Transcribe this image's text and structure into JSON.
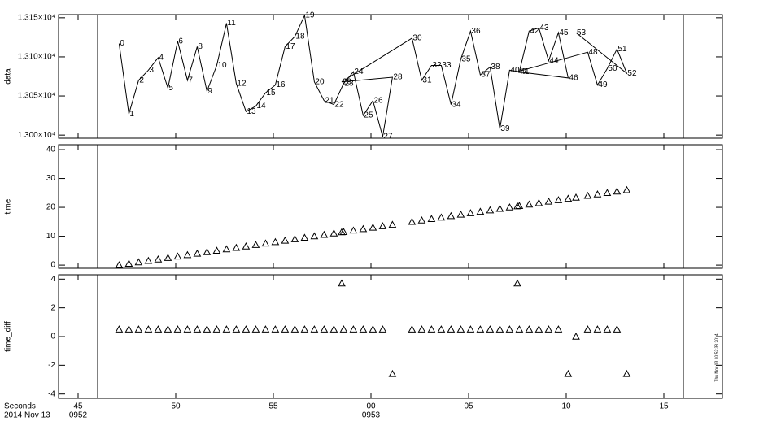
{
  "x_axis": {
    "title": "Seconds",
    "date": "2014 Nov 13",
    "xlim": [
      44.0,
      78.0
    ],
    "xticks": [
      45,
      50,
      55,
      {
        "value": 60,
        "label": "00"
      },
      {
        "value": 65,
        "label": "05"
      },
      {
        "value": 70,
        "label": "10"
      },
      {
        "value": 75,
        "label": "15"
      }
    ],
    "hour_labels": [
      {
        "value": 45,
        "label": "0952"
      },
      {
        "value": 60,
        "label": "0953"
      }
    ]
  },
  "time_markers": [
    46,
    76
  ],
  "timestamp": "Thu Nov 13 10:52:38 2014",
  "chart_data": [
    {
      "type": "line",
      "ylabel": "data",
      "color": "#000000",
      "x": [
        47.1,
        47.6,
        48.1,
        48.6,
        49.1,
        49.6,
        50.1,
        50.6,
        51.1,
        51.6,
        52.1,
        52.6,
        53.1,
        53.6,
        54.1,
        54.6,
        55.1,
        55.6,
        56.1,
        56.6,
        57.1,
        57.6,
        58.1,
        58.6,
        59.1,
        59.6,
        60.1,
        60.6,
        61.1,
        58.5,
        62.1,
        62.6,
        63.1,
        63.6,
        64.1,
        64.6,
        65.1,
        65.6,
        66.1,
        66.6,
        67.1,
        67.6,
        68.1,
        68.6,
        69.1,
        69.6,
        70.1,
        67.5,
        71.1,
        71.6,
        72.1,
        72.6,
        73.1,
        70.5
      ],
      "values": [
        13117,
        13027,
        13070,
        13083,
        13099,
        13060,
        13120,
        13070,
        13113,
        13056,
        13089,
        13143,
        13066,
        13030,
        13037,
        13054,
        13064,
        13113,
        13126,
        13153,
        13068,
        13044,
        13039,
        13066,
        13081,
        13025,
        13044,
        12998,
        13074,
        13068,
        13124,
        13070,
        13089,
        13089,
        13039,
        13097,
        13133,
        13077,
        13087,
        13008,
        13083,
        13081,
        13133,
        13137,
        13095,
        13131,
        13073,
        13081,
        13106,
        13064,
        13085,
        13110,
        13079,
        13131
      ],
      "labels": [
        0,
        1,
        2,
        3,
        4,
        5,
        6,
        7,
        8,
        9,
        10,
        11,
        12,
        13,
        14,
        15,
        16,
        17,
        18,
        19,
        20,
        21,
        22,
        23,
        24,
        25,
        26,
        27,
        28,
        29,
        30,
        31,
        32,
        33,
        34,
        35,
        36,
        37,
        38,
        39,
        40,
        41,
        42,
        43,
        44,
        45,
        46,
        47,
        48,
        49,
        50,
        51,
        52,
        53
      ],
      "label_colors": [
        "#000",
        "#000",
        "#000",
        "#000",
        "#000",
        "#000",
        "#000",
        "#000",
        "#000",
        "#000",
        "#000",
        "#000",
        "#000",
        "#000",
        "#000",
        "#000",
        "#000",
        "#000",
        "#000",
        "#000",
        "#000",
        "#000",
        "#000",
        "#000",
        "#000",
        "#000",
        "#000",
        "#000",
        "#000",
        "#cc0000",
        "#000",
        "#000",
        "#000",
        "#000",
        "#000",
        "#000",
        "#000",
        "#000",
        "#000",
        "#000",
        "#000",
        "#000",
        "#000",
        "#000",
        "#000",
        "#000",
        "#000",
        "#cc0000",
        "#000",
        "#000",
        "#000",
        "#000",
        "#000",
        "#cc0000"
      ],
      "ylim": [
        12996,
        13154
      ],
      "yticks": [
        {
          "value": 13000,
          "label": "1.300×10⁴"
        },
        {
          "value": 13050,
          "label": "1.305×10⁴"
        },
        {
          "value": 13100,
          "label": "1.310×10⁴"
        },
        {
          "value": 13150,
          "label": "1.315×10⁴"
        }
      ]
    },
    {
      "type": "scatter",
      "ylabel": "time",
      "marker": "triangle",
      "color": "#000000",
      "x": [
        47.1,
        47.6,
        48.1,
        48.6,
        49.1,
        49.6,
        50.1,
        50.6,
        51.1,
        51.6,
        52.1,
        52.6,
        53.1,
        53.6,
        54.1,
        54.6,
        55.1,
        55.6,
        56.1,
        56.6,
        57.1,
        57.6,
        58.1,
        58.6,
        59.1,
        59.6,
        60.1,
        60.6,
        61.1,
        58.5,
        62.1,
        62.6,
        63.1,
        63.6,
        64.1,
        64.6,
        65.1,
        65.6,
        66.1,
        66.6,
        67.1,
        67.6,
        68.1,
        68.6,
        69.1,
        69.6,
        70.1,
        67.5,
        71.1,
        71.6,
        72.1,
        72.6,
        73.1,
        70.5
      ],
      "values": [
        0,
        0.5,
        1,
        1.5,
        2,
        2.5,
        3,
        3.5,
        4,
        4.5,
        5,
        5.5,
        6,
        6.5,
        7,
        7.5,
        8,
        8.5,
        9,
        9.5,
        10,
        10.5,
        11,
        11.5,
        12,
        12.5,
        13,
        13.5,
        14,
        11.4,
        15,
        15.5,
        16,
        16.5,
        17,
        17.5,
        18,
        18.5,
        19,
        19.5,
        20,
        20.5,
        21,
        21.5,
        22,
        22.5,
        23,
        20.4,
        24,
        24.5,
        25,
        25.5,
        26,
        23.4
      ],
      "ylim": [
        -1.1,
        41.7
      ],
      "yticks": [
        0,
        10,
        20,
        30,
        40
      ]
    },
    {
      "type": "scatter",
      "ylabel": "time_diff",
      "marker": "triangle",
      "color": "#000000",
      "x": [
        47.1,
        47.6,
        48.1,
        48.6,
        49.1,
        49.6,
        50.1,
        50.6,
        51.1,
        51.6,
        52.1,
        52.6,
        53.1,
        53.6,
        54.1,
        54.6,
        55.1,
        55.6,
        56.1,
        56.6,
        57.1,
        57.6,
        58.1,
        58.6,
        59.1,
        59.6,
        60.1,
        60.6,
        61.1,
        58.5,
        62.1,
        62.6,
        63.1,
        63.6,
        64.1,
        64.6,
        65.1,
        65.6,
        66.1,
        66.6,
        67.1,
        67.6,
        68.1,
        68.6,
        69.1,
        69.6,
        70.1,
        67.5,
        71.1,
        71.6,
        72.1,
        72.6,
        73.1,
        70.5
      ],
      "values": [
        0.5,
        0.5,
        0.5,
        0.5,
        0.5,
        0.5,
        0.5,
        0.5,
        0.5,
        0.5,
        0.5,
        0.5,
        0.5,
        0.5,
        0.5,
        0.5,
        0.5,
        0.5,
        0.5,
        0.5,
        0.5,
        0.5,
        0.5,
        0.5,
        0.5,
        0.5,
        0.5,
        0.5,
        -2.6,
        3.7,
        0.5,
        0.5,
        0.5,
        0.5,
        0.5,
        0.5,
        0.5,
        0.5,
        0.5,
        0.5,
        0.5,
        0.5,
        0.5,
        0.5,
        0.5,
        0.5,
        -2.6,
        3.7,
        0.5,
        0.5,
        0.5,
        0.5,
        -2.6,
        0
      ],
      "ylim": [
        -4.3,
        4.3
      ],
      "yticks": [
        -4,
        -2,
        0,
        2,
        4
      ]
    }
  ]
}
